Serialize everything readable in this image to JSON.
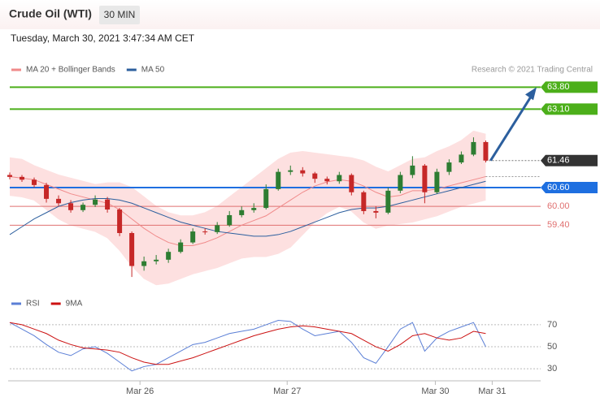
{
  "header": {
    "title": "Crude Oil (WTI)",
    "interval": "30 MIN",
    "date": "Tuesday, March 30, 2021 3:47:34 AM CET",
    "credit": "Research © 2021 Trading Central"
  },
  "chart_data": [
    {
      "type": "candlestick",
      "ylim": [
        57.39,
        64.3
      ],
      "xlim": [
        0,
        43.5
      ],
      "candles": {
        "up_color": "#2e7d32",
        "down_color": "#c62828",
        "open": [
          61.0,
          60.94,
          60.85,
          60.68,
          60.24,
          60.1,
          59.88,
          60.05,
          60.22,
          59.9,
          59.15,
          58.1,
          58.25,
          58.3,
          58.55,
          58.85,
          59.2,
          59.18,
          59.4,
          59.72,
          59.88,
          59.95,
          60.55,
          61.1,
          61.15,
          61.05,
          60.88,
          60.8,
          61.0,
          60.45,
          59.85,
          59.8,
          60.5,
          61.0,
          61.3,
          60.45,
          61.1,
          61.4,
          61.65,
          62.05
        ],
        "high": [
          61.08,
          61.0,
          60.92,
          60.75,
          60.35,
          60.2,
          60.12,
          60.35,
          60.3,
          59.95,
          59.2,
          58.4,
          58.45,
          58.65,
          58.95,
          59.3,
          59.3,
          59.5,
          59.85,
          60.0,
          60.1,
          60.7,
          61.2,
          61.3,
          61.25,
          61.1,
          60.95,
          61.1,
          61.05,
          60.5,
          60.0,
          60.6,
          61.1,
          61.6,
          61.35,
          61.2,
          61.5,
          61.75,
          62.2,
          62.1
        ],
        "low": [
          60.86,
          60.78,
          60.6,
          60.12,
          60.0,
          59.8,
          59.82,
          59.98,
          59.8,
          59.05,
          57.75,
          57.95,
          58.15,
          58.2,
          58.5,
          58.8,
          59.1,
          59.12,
          59.35,
          59.65,
          59.8,
          59.9,
          60.5,
          61.0,
          60.95,
          60.75,
          60.7,
          60.72,
          60.35,
          59.75,
          59.62,
          59.75,
          60.42,
          60.9,
          60.1,
          60.4,
          61.0,
          61.35,
          61.6,
          61.4
        ],
        "close": [
          60.94,
          60.85,
          60.68,
          60.24,
          60.1,
          59.88,
          60.05,
          60.22,
          59.9,
          59.15,
          58.1,
          58.25,
          58.3,
          58.55,
          58.85,
          59.2,
          59.18,
          59.4,
          59.72,
          59.88,
          59.95,
          60.55,
          61.1,
          61.15,
          61.05,
          60.88,
          60.8,
          61.0,
          60.45,
          59.85,
          59.8,
          60.5,
          61.0,
          61.3,
          60.45,
          61.1,
          61.4,
          61.65,
          62.05,
          61.46
        ]
      },
      "series": [
        {
          "name": "MA 20 + Bollinger Bands",
          "color": "#f08a8a",
          "band_color": "#fde0e0",
          "values": [
            60.95,
            60.9,
            60.85,
            60.7,
            60.55,
            60.4,
            60.3,
            60.2,
            60.1,
            59.9,
            59.6,
            59.3,
            59.05,
            58.85,
            58.75,
            58.75,
            58.85,
            59.0,
            59.2,
            59.4,
            59.55,
            59.7,
            59.95,
            60.2,
            60.45,
            60.65,
            60.78,
            60.85,
            60.8,
            60.65,
            60.45,
            60.3,
            60.35,
            60.5,
            60.5,
            60.55,
            60.65,
            60.75,
            60.85,
            60.95
          ],
          "upper": [
            61.55,
            61.5,
            61.3,
            61.15,
            61.0,
            60.9,
            60.8,
            60.7,
            60.75,
            60.75,
            60.6,
            60.3,
            60.0,
            59.8,
            59.7,
            59.7,
            59.8,
            60.0,
            60.3,
            60.6,
            60.9,
            61.2,
            61.5,
            61.7,
            61.75,
            61.7,
            61.65,
            61.6,
            61.55,
            61.45,
            61.25,
            61.1,
            61.3,
            61.5,
            61.55,
            61.75,
            61.9,
            62.1,
            62.4,
            62.3
          ],
          "lower": [
            60.35,
            60.3,
            60.2,
            59.9,
            59.6,
            59.4,
            59.3,
            59.2,
            59.0,
            58.6,
            58.1,
            57.7,
            57.5,
            57.55,
            57.7,
            57.85,
            57.95,
            58.05,
            58.2,
            58.35,
            58.4,
            58.4,
            58.5,
            58.7,
            59.1,
            59.5,
            59.8,
            60.0,
            59.85,
            59.5,
            59.3,
            59.4,
            59.45,
            59.5,
            59.6,
            59.7,
            59.85,
            60.0,
            60.1,
            60.2
          ]
        },
        {
          "name": "MA 50",
          "color": "#2c5f9e",
          "values": [
            59.1,
            59.35,
            59.6,
            59.8,
            60.0,
            60.12,
            60.2,
            60.25,
            60.25,
            60.2,
            60.1,
            59.95,
            59.8,
            59.65,
            59.5,
            59.4,
            59.3,
            59.2,
            59.15,
            59.1,
            59.05,
            59.05,
            59.1,
            59.2,
            59.35,
            59.5,
            59.65,
            59.8,
            59.9,
            59.95,
            59.95,
            60.0,
            60.1,
            60.2,
            60.3,
            60.4,
            60.5,
            60.6,
            60.7,
            60.8
          ]
        }
      ],
      "levels": [
        {
          "value": 63.8,
          "label": "63.80",
          "color": "#4caf1a",
          "style": "box"
        },
        {
          "value": 63.1,
          "label": "63.10",
          "color": "#4caf1a",
          "style": "box"
        },
        {
          "value": 61.46,
          "label": "61.46",
          "color": "#333333",
          "style": "last"
        },
        {
          "value": 60.6,
          "label": "60.60",
          "color": "#1e6fe0",
          "style": "box"
        },
        {
          "value": 60.0,
          "label": "60.00",
          "color": "#e07070",
          "style": "text"
        },
        {
          "value": 59.4,
          "label": "59.40",
          "color": "#e07070",
          "style": "text"
        }
      ]
    },
    {
      "type": "line",
      "ylim": [
        22,
        81
      ],
      "yticks": [
        70,
        50,
        30
      ],
      "xlim": [
        0,
        43.5
      ],
      "xticks": [
        {
          "value": 10.67,
          "label": "Mar 26"
        },
        {
          "value": 22.73,
          "label": "Mar 27"
        },
        {
          "value": 34.87,
          "label": "Mar 30"
        },
        {
          "value": 39.53,
          "label": "Mar 31"
        }
      ],
      "series": [
        {
          "name": "RSI",
          "color": "#5b7fd6",
          "values": [
            72,
            66,
            60,
            52,
            45,
            42,
            48,
            50,
            44,
            36,
            28,
            32,
            34,
            40,
            46,
            52,
            54,
            58,
            62,
            64,
            66,
            70,
            74,
            73,
            66,
            60,
            62,
            64,
            54,
            40,
            35,
            50,
            66,
            72,
            46,
            58,
            64,
            68,
            72,
            50
          ]
        },
        {
          "name": "9MA",
          "color": "#cc1111",
          "values": [
            72,
            70,
            66,
            62,
            56,
            52,
            49,
            48,
            47,
            45,
            40,
            36,
            34,
            34,
            37,
            40,
            44,
            48,
            52,
            56,
            60,
            63,
            66,
            68,
            69,
            68,
            66,
            64,
            62,
            56,
            50,
            46,
            52,
            60,
            62,
            58,
            56,
            58,
            64,
            62
          ]
        }
      ]
    }
  ]
}
